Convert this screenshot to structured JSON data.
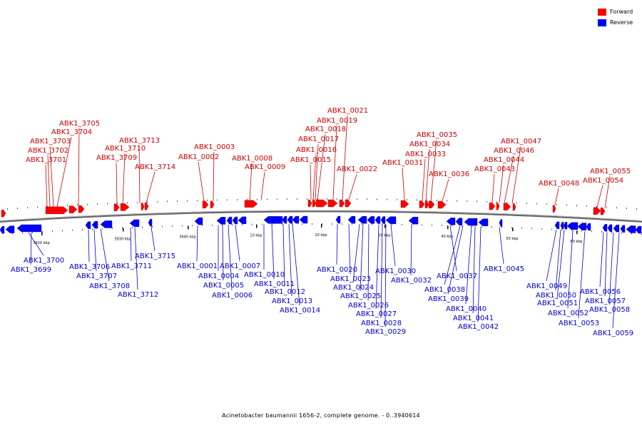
{
  "caption": "Acinetobacter baumannii 1656-2, complete genome. - 0..3940614",
  "colors": {
    "forward": "#ff0000",
    "reverse": "#0000ff",
    "backbone": "#666666",
    "forward_label": "#cc0000",
    "reverse_label": "#0000cc"
  },
  "legend": [
    {
      "label": "Forward",
      "color": "#ff0000"
    },
    {
      "label": "Reverse",
      "color": "#0000ff"
    }
  ],
  "scale_labels": [
    "3920 kbp",
    "3930 kbp",
    "3940 kbp",
    "10 kbp",
    "20 kbp",
    "30 kbp",
    "40 kbp",
    "50 kbp",
    "60 kbp"
  ],
  "genes_forward": [
    "ABK1_3701",
    "ABK1_3702",
    "ABK1_3703",
    "ABK1_3704",
    "ABK1_3705",
    "ABK1_3709",
    "ABK1_3710",
    "ABK1_3713",
    "ABK1_3714",
    "ABK1_0002",
    "ABK1_0003",
    "ABK1_0008",
    "ABK1_0009",
    "ABK1_0015",
    "ABK1_0016",
    "ABK1_0017",
    "ABK1_0018",
    "ABK1_0019",
    "ABK1_0021",
    "ABK1_0022",
    "ABK1_0031",
    "ABK1_0033",
    "ABK1_0034",
    "ABK1_0035",
    "ABK1_0036",
    "ABK1_0043",
    "ABK1_0044",
    "ABK1_0046",
    "ABK1_0047",
    "ABK1_0048",
    "ABK1_0054",
    "ABK1_0055"
  ],
  "genes_reverse": [
    "ABK1_3699",
    "ABK1_3700",
    "ABK1_3706",
    "ABK1_3707",
    "ABK1_3708",
    "ABK1_3711",
    "ABK1_3712",
    "ABK1_3715",
    "ABK1_0001",
    "ABK1_0004",
    "ABK1_0005",
    "ABK1_0006",
    "ABK1_0007",
    "ABK1_0010",
    "ABK1_0011",
    "ABK1_0012",
    "ABK1_0013",
    "ABK1_0014",
    "ABK1_0020",
    "ABK1_0023",
    "ABK1_0024",
    "ABK1_0025",
    "ABK1_0026",
    "ABK1_0027",
    "ABK1_0028",
    "ABK1_0029",
    "ABK1_0030",
    "ABK1_0032",
    "ABK1_0037",
    "ABK1_0038",
    "ABK1_0039",
    "ABK1_0040",
    "ABK1_0041",
    "ABK1_0042",
    "ABK1_0045",
    "ABK1_0049",
    "ABK1_0050",
    "ABK1_0051",
    "ABK1_0052",
    "ABK1_0053",
    "ABK1_0056",
    "ABK1_0057",
    "ABK1_0058",
    "ABK1_0059"
  ]
}
